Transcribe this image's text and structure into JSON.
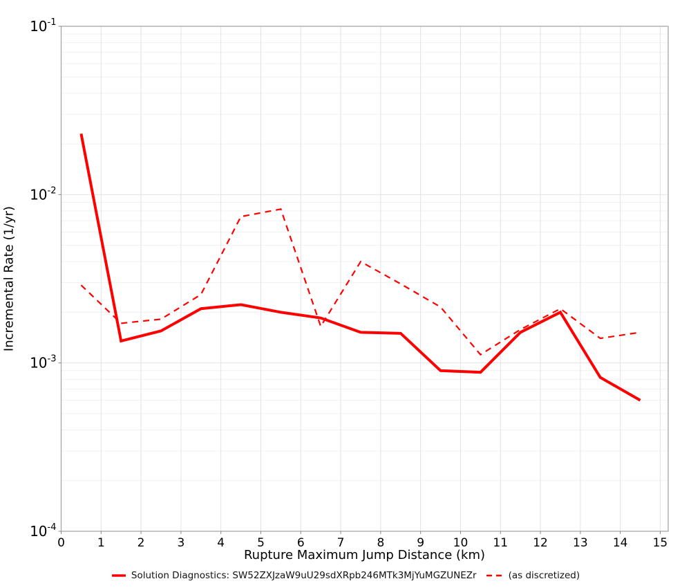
{
  "chart_data": {
    "type": "line",
    "xlabel": "Rupture Maximum Jump Distance (km)",
    "ylabel": "Incremental Rate (1/yr)",
    "xlim": [
      0,
      15.2
    ],
    "ylim": [
      0.0001,
      0.1
    ],
    "yscale": "log",
    "grid": {
      "major": true,
      "minor": true
    },
    "legend_position": "bottom-center",
    "x_ticks": [
      0,
      1,
      2,
      3,
      4,
      5,
      6,
      7,
      8,
      9,
      10,
      11,
      12,
      13,
      14,
      15
    ],
    "y_tick_base": "10",
    "y_tick_exponents": [
      -1,
      -2,
      -3,
      -4
    ],
    "x": [
      0.5,
      1.5,
      2.5,
      3.5,
      4.5,
      5.5,
      6.5,
      7.5,
      8.5,
      9.5,
      10.5,
      11.5,
      12.5,
      13.5,
      14.5
    ],
    "series": [
      {
        "name": "Solution Diagnostics: SW52ZXJzaW9uU29sdXRpb246MTk3MjYuMGZUNEZr",
        "style": "solid",
        "color": "#ff0000",
        "stroke_width": 4,
        "values": [
          0.023,
          0.00135,
          0.00155,
          0.0021,
          0.00222,
          0.002,
          0.00185,
          0.00152,
          0.0015,
          0.0009,
          0.00088,
          0.00152,
          0.002,
          0.00082,
          0.0006
        ]
      },
      {
        "name": "(as discretized)",
        "style": "dashed",
        "color": "#ff0000",
        "stroke_width": 2.2,
        "dash": [
          9,
          7
        ],
        "values": [
          0.0029,
          0.00172,
          0.00182,
          0.00255,
          0.0074,
          0.0082,
          0.00165,
          0.004,
          0.00295,
          0.00215,
          0.00112,
          0.00158,
          0.0021,
          0.0014,
          0.00152
        ]
      }
    ],
    "colors": {
      "grid_major": "#e2e2e2",
      "grid_minor": "#f0f0f0",
      "border": "#a6a6a6",
      "tick": "#888888",
      "text": "#000000"
    }
  }
}
